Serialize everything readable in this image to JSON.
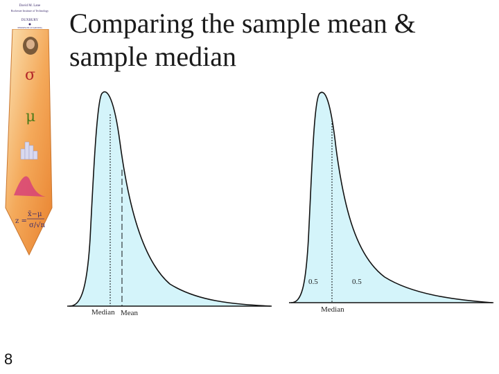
{
  "slide": {
    "title_line1": "Comparing the sample mean &",
    "title_line2": "sample median",
    "page_number": "8"
  },
  "tie_logo": {
    "line1": "David M. Lane",
    "line2": "Rochester Institute of Technology",
    "publisher": "DUXBURY",
    "publisher_sub": "THOMSON LEARNING",
    "symbols": {
      "sigma": "σ",
      "mu": "μ"
    }
  },
  "left_graph": {
    "label_median": "Median",
    "label_mean": "Mean"
  },
  "right_graph": {
    "label_median": "Median",
    "label_left_area": "0.5",
    "label_right_area": "0.5"
  },
  "colors": {
    "fill": "#d4f4fa",
    "curve": "#111111",
    "tie_orange": "#f2a24a"
  }
}
